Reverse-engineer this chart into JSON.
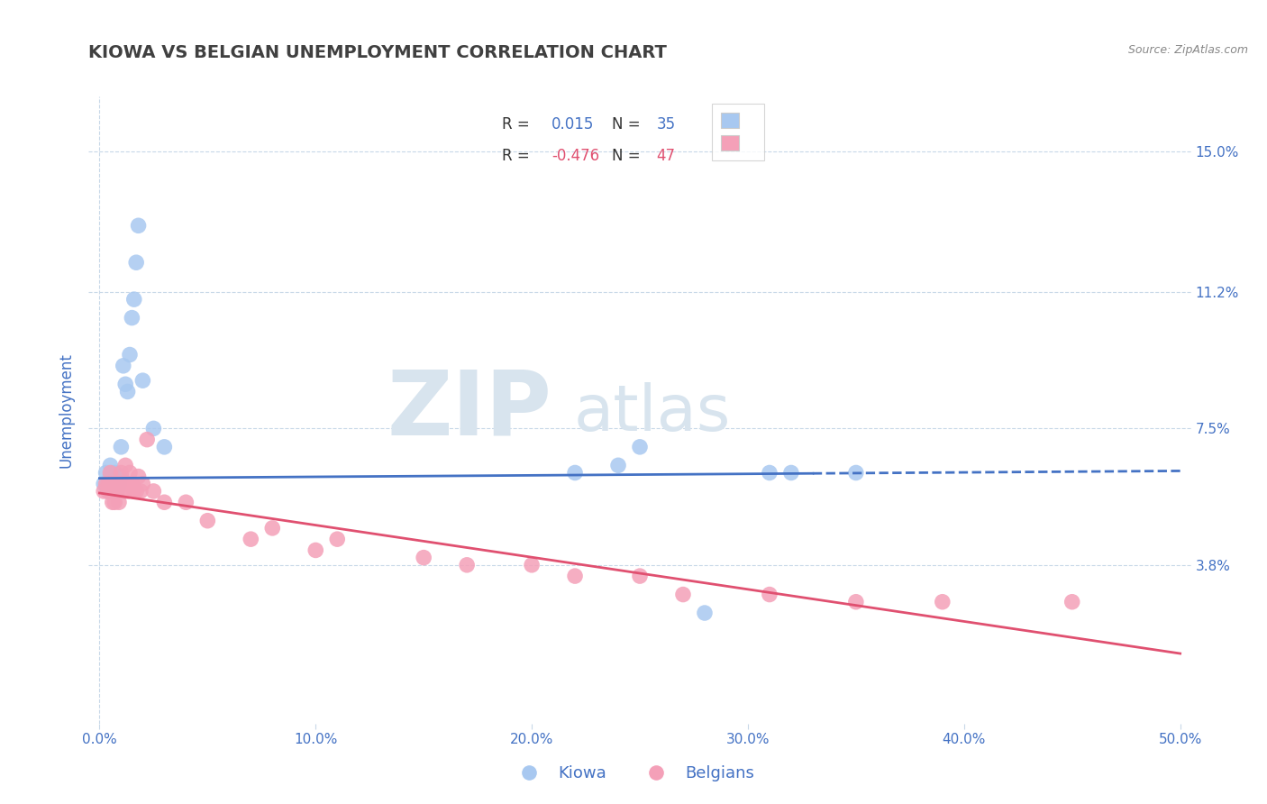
{
  "title": "KIOWA VS BELGIAN UNEMPLOYMENT CORRELATION CHART",
  "source": "Source: ZipAtlas.com",
  "ylabel": "Unemployment",
  "xlim": [
    -0.005,
    0.505
  ],
  "ylim": [
    -0.005,
    0.165
  ],
  "yticks": [
    0.038,
    0.075,
    0.112,
    0.15
  ],
  "ytick_labels": [
    "3.8%",
    "7.5%",
    "11.2%",
    "15.0%"
  ],
  "xticks": [
    0.0,
    0.1,
    0.2,
    0.3,
    0.4,
    0.5
  ],
  "xtick_labels": [
    "0.0%",
    "10.0%",
    "20.0%",
    "30.0%",
    "40.0%",
    "50.0%"
  ],
  "kiowa_color": "#a8c8f0",
  "belgians_color": "#f4a0b8",
  "kiowa_line_color": "#4472c4",
  "belgians_line_color": "#e05070",
  "title_color": "#404040",
  "axis_label_color": "#4472c4",
  "tick_label_color": "#4472c4",
  "background_color": "#ffffff",
  "grid_color": "#c8d8e8",
  "watermark_zip": "ZIP",
  "watermark_atlas": "atlas",
  "watermark_color": "#d8e4ee",
  "legend_r1": "R =  0.015",
  "legend_n1": "N = 35",
  "legend_r2": "R = -0.476",
  "legend_n2": "N = 47",
  "kiowa_x": [
    0.002,
    0.003,
    0.004,
    0.004,
    0.005,
    0.005,
    0.005,
    0.006,
    0.006,
    0.007,
    0.007,
    0.008,
    0.008,
    0.009,
    0.009,
    0.01,
    0.01,
    0.011,
    0.012,
    0.013,
    0.014,
    0.015,
    0.016,
    0.017,
    0.018,
    0.02,
    0.025,
    0.03,
    0.22,
    0.24,
    0.25,
    0.28,
    0.31,
    0.32,
    0.35
  ],
  "kiowa_y": [
    0.06,
    0.063,
    0.06,
    0.058,
    0.06,
    0.062,
    0.065,
    0.058,
    0.062,
    0.06,
    0.063,
    0.058,
    0.06,
    0.06,
    0.062,
    0.062,
    0.07,
    0.092,
    0.087,
    0.085,
    0.095,
    0.105,
    0.11,
    0.12,
    0.13,
    0.088,
    0.075,
    0.07,
    0.063,
    0.065,
    0.07,
    0.025,
    0.063,
    0.063,
    0.063
  ],
  "belgians_x": [
    0.002,
    0.003,
    0.004,
    0.004,
    0.005,
    0.005,
    0.006,
    0.006,
    0.007,
    0.007,
    0.008,
    0.008,
    0.009,
    0.009,
    0.01,
    0.01,
    0.011,
    0.012,
    0.012,
    0.013,
    0.013,
    0.014,
    0.015,
    0.016,
    0.017,
    0.018,
    0.019,
    0.02,
    0.022,
    0.025,
    0.03,
    0.04,
    0.05,
    0.07,
    0.08,
    0.1,
    0.11,
    0.15,
    0.17,
    0.2,
    0.22,
    0.25,
    0.27,
    0.31,
    0.35,
    0.39,
    0.45
  ],
  "belgians_y": [
    0.058,
    0.06,
    0.06,
    0.058,
    0.06,
    0.063,
    0.055,
    0.058,
    0.055,
    0.06,
    0.058,
    0.06,
    0.06,
    0.055,
    0.063,
    0.06,
    0.058,
    0.06,
    0.065,
    0.058,
    0.06,
    0.063,
    0.06,
    0.058,
    0.058,
    0.062,
    0.058,
    0.06,
    0.072,
    0.058,
    0.055,
    0.055,
    0.05,
    0.045,
    0.048,
    0.042,
    0.045,
    0.04,
    0.038,
    0.038,
    0.035,
    0.035,
    0.03,
    0.03,
    0.028,
    0.028,
    0.028
  ],
  "kiowa_trend_x0": 0.0,
  "kiowa_trend_x1": 0.5,
  "kiowa_trend_y0": 0.0615,
  "kiowa_trend_y1": 0.0635,
  "belgians_trend_x0": 0.0,
  "belgians_trend_x1": 0.5,
  "belgians_trend_y0": 0.0575,
  "belgians_trend_y1": 0.014
}
